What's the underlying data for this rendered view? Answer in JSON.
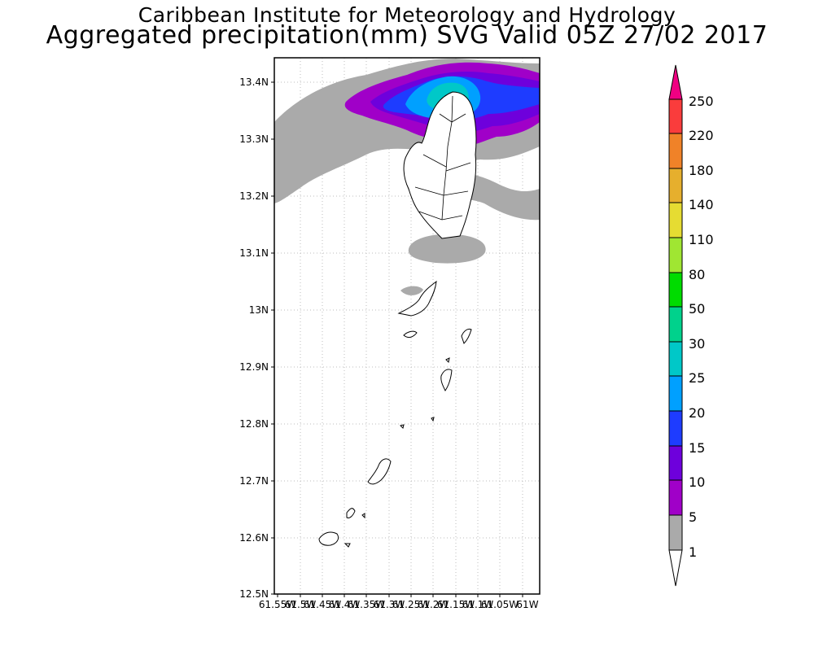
{
  "header": {
    "org": "Caribbean Institute for Meteorology and Hydrology",
    "title": "Aggregated precipitation(mm) SVG Valid 05Z 27/02 2017"
  },
  "map": {
    "lat_labels": [
      "13.4N",
      "13.3N",
      "13.2N",
      "13.1N",
      "13N",
      "12.9N",
      "12.8N",
      "12.7N",
      "12.6N",
      "12.5N"
    ],
    "lon_labels": [
      "61.55W",
      "61.5W",
      "61.45W",
      "61.4W",
      "61.35W",
      "61.3W",
      "61.25W",
      "61.2W",
      "61.15W",
      "61.1W",
      "61.05W",
      "61W"
    ]
  },
  "colorbar": {
    "levels": [
      "1",
      "5",
      "10",
      "15",
      "20",
      "25",
      "30",
      "50",
      "80",
      "110",
      "140",
      "180",
      "220",
      "250"
    ],
    "colors": {
      "grey": "#aaaaaa",
      "purple": "#a000c8",
      "violet": "#6e00dc",
      "blue": "#1e3cff",
      "lightblue": "#00a0ff",
      "cyan": "#00c8c8",
      "teal": "#00d28c",
      "green": "#00dc00",
      "lightgreen": "#a0e632",
      "yellow": "#e6dc32",
      "orange_yellow": "#e6af2d",
      "orange": "#f08228",
      "red": "#fa3c3c",
      "magenta": "#f00082"
    }
  }
}
